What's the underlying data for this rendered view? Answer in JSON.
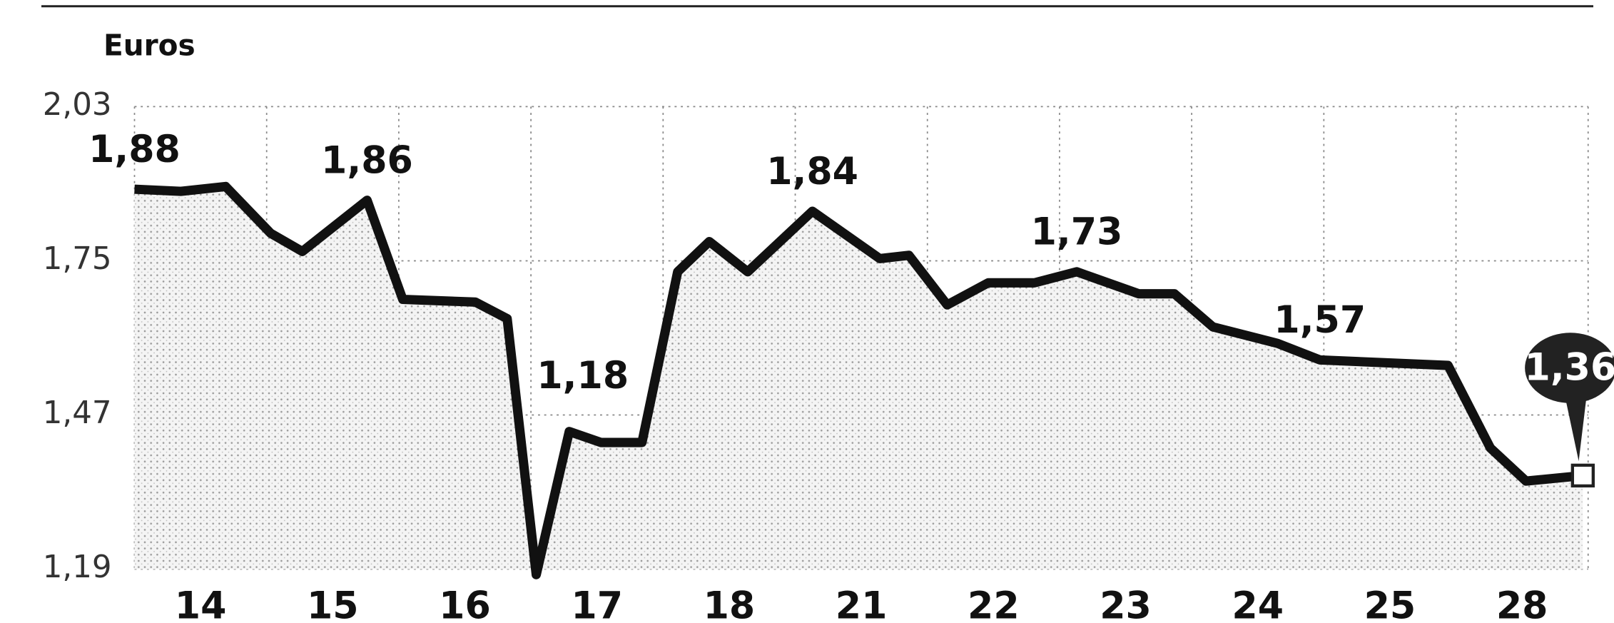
{
  "chart_data": {
    "type": "line",
    "y_label": "Euros",
    "categories": [
      "14",
      "15",
      "16",
      "17",
      "18",
      "21",
      "22",
      "23",
      "24",
      "25",
      "28"
    ],
    "xlim": [
      0,
      11
    ],
    "ylim": [
      1.19,
      2.03
    ],
    "yticks": [
      {
        "value": 2.03,
        "label": "2,03"
      },
      {
        "value": 1.75,
        "label": "1,75"
      },
      {
        "value": 1.47,
        "label": "1,47"
      },
      {
        "value": 1.19,
        "label": "1,19"
      }
    ],
    "grid": true,
    "color": "#111111",
    "x": [
      0,
      0.35,
      0.69,
      1.03,
      1.27,
      1.76,
      2.03,
      2.58,
      2.82,
      3.04,
      3.29,
      3.53,
      3.84,
      4.11,
      4.35,
      4.64,
      5.13,
      5.64,
      5.86,
      6.15,
      6.46,
      6.81,
      7.13,
      7.6,
      7.87,
      8.16,
      8.65,
      8.97,
      9.94,
      10.26,
      10.53,
      10.96
    ],
    "values": [
      1.88,
      1.876,
      1.885,
      1.8,
      1.767,
      1.86,
      1.68,
      1.675,
      1.645,
      1.18,
      1.44,
      1.42,
      1.42,
      1.73,
      1.785,
      1.73,
      1.84,
      1.754,
      1.76,
      1.67,
      1.71,
      1.71,
      1.73,
      1.69,
      1.69,
      1.63,
      1.6,
      1.57,
      1.56,
      1.41,
      1.35,
      1.36
    ],
    "value_labels": [
      "1,88",
      null,
      null,
      null,
      null,
      "1,86",
      null,
      null,
      null,
      "1,18",
      null,
      null,
      null,
      null,
      null,
      null,
      "1,84",
      null,
      null,
      null,
      null,
      null,
      "1,73",
      null,
      null,
      null,
      null,
      "1,57",
      null,
      null,
      null,
      "1,36"
    ]
  }
}
